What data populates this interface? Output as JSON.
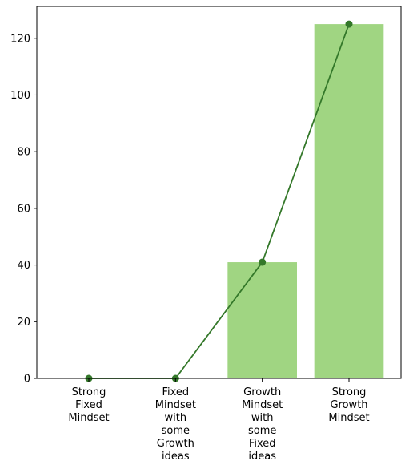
{
  "chart_data": {
    "type": "bar",
    "categories": [
      [
        "Strong",
        "Fixed",
        "Mindset"
      ],
      [
        "Fixed",
        "Mindset",
        "with",
        "some",
        "Growth",
        "ideas"
      ],
      [
        "Growth",
        "Mindset",
        "with",
        "some",
        "Fixed",
        "ideas"
      ],
      [
        "Strong",
        "Growth",
        "Mindset"
      ]
    ],
    "values": [
      0,
      0,
      41,
      125
    ],
    "overlay_line": {
      "values": [
        0,
        0,
        41,
        125
      ],
      "marker": "circle"
    },
    "title": "",
    "xlabel": "",
    "ylabel": "",
    "ylim": [
      0,
      131.25
    ],
    "yticks": [
      0,
      20,
      40,
      60,
      80,
      100,
      120
    ],
    "grid": false,
    "legend": "none",
    "colors": {
      "bar": "#a0d582",
      "line": "#34782a",
      "axis": "#000000"
    }
  }
}
